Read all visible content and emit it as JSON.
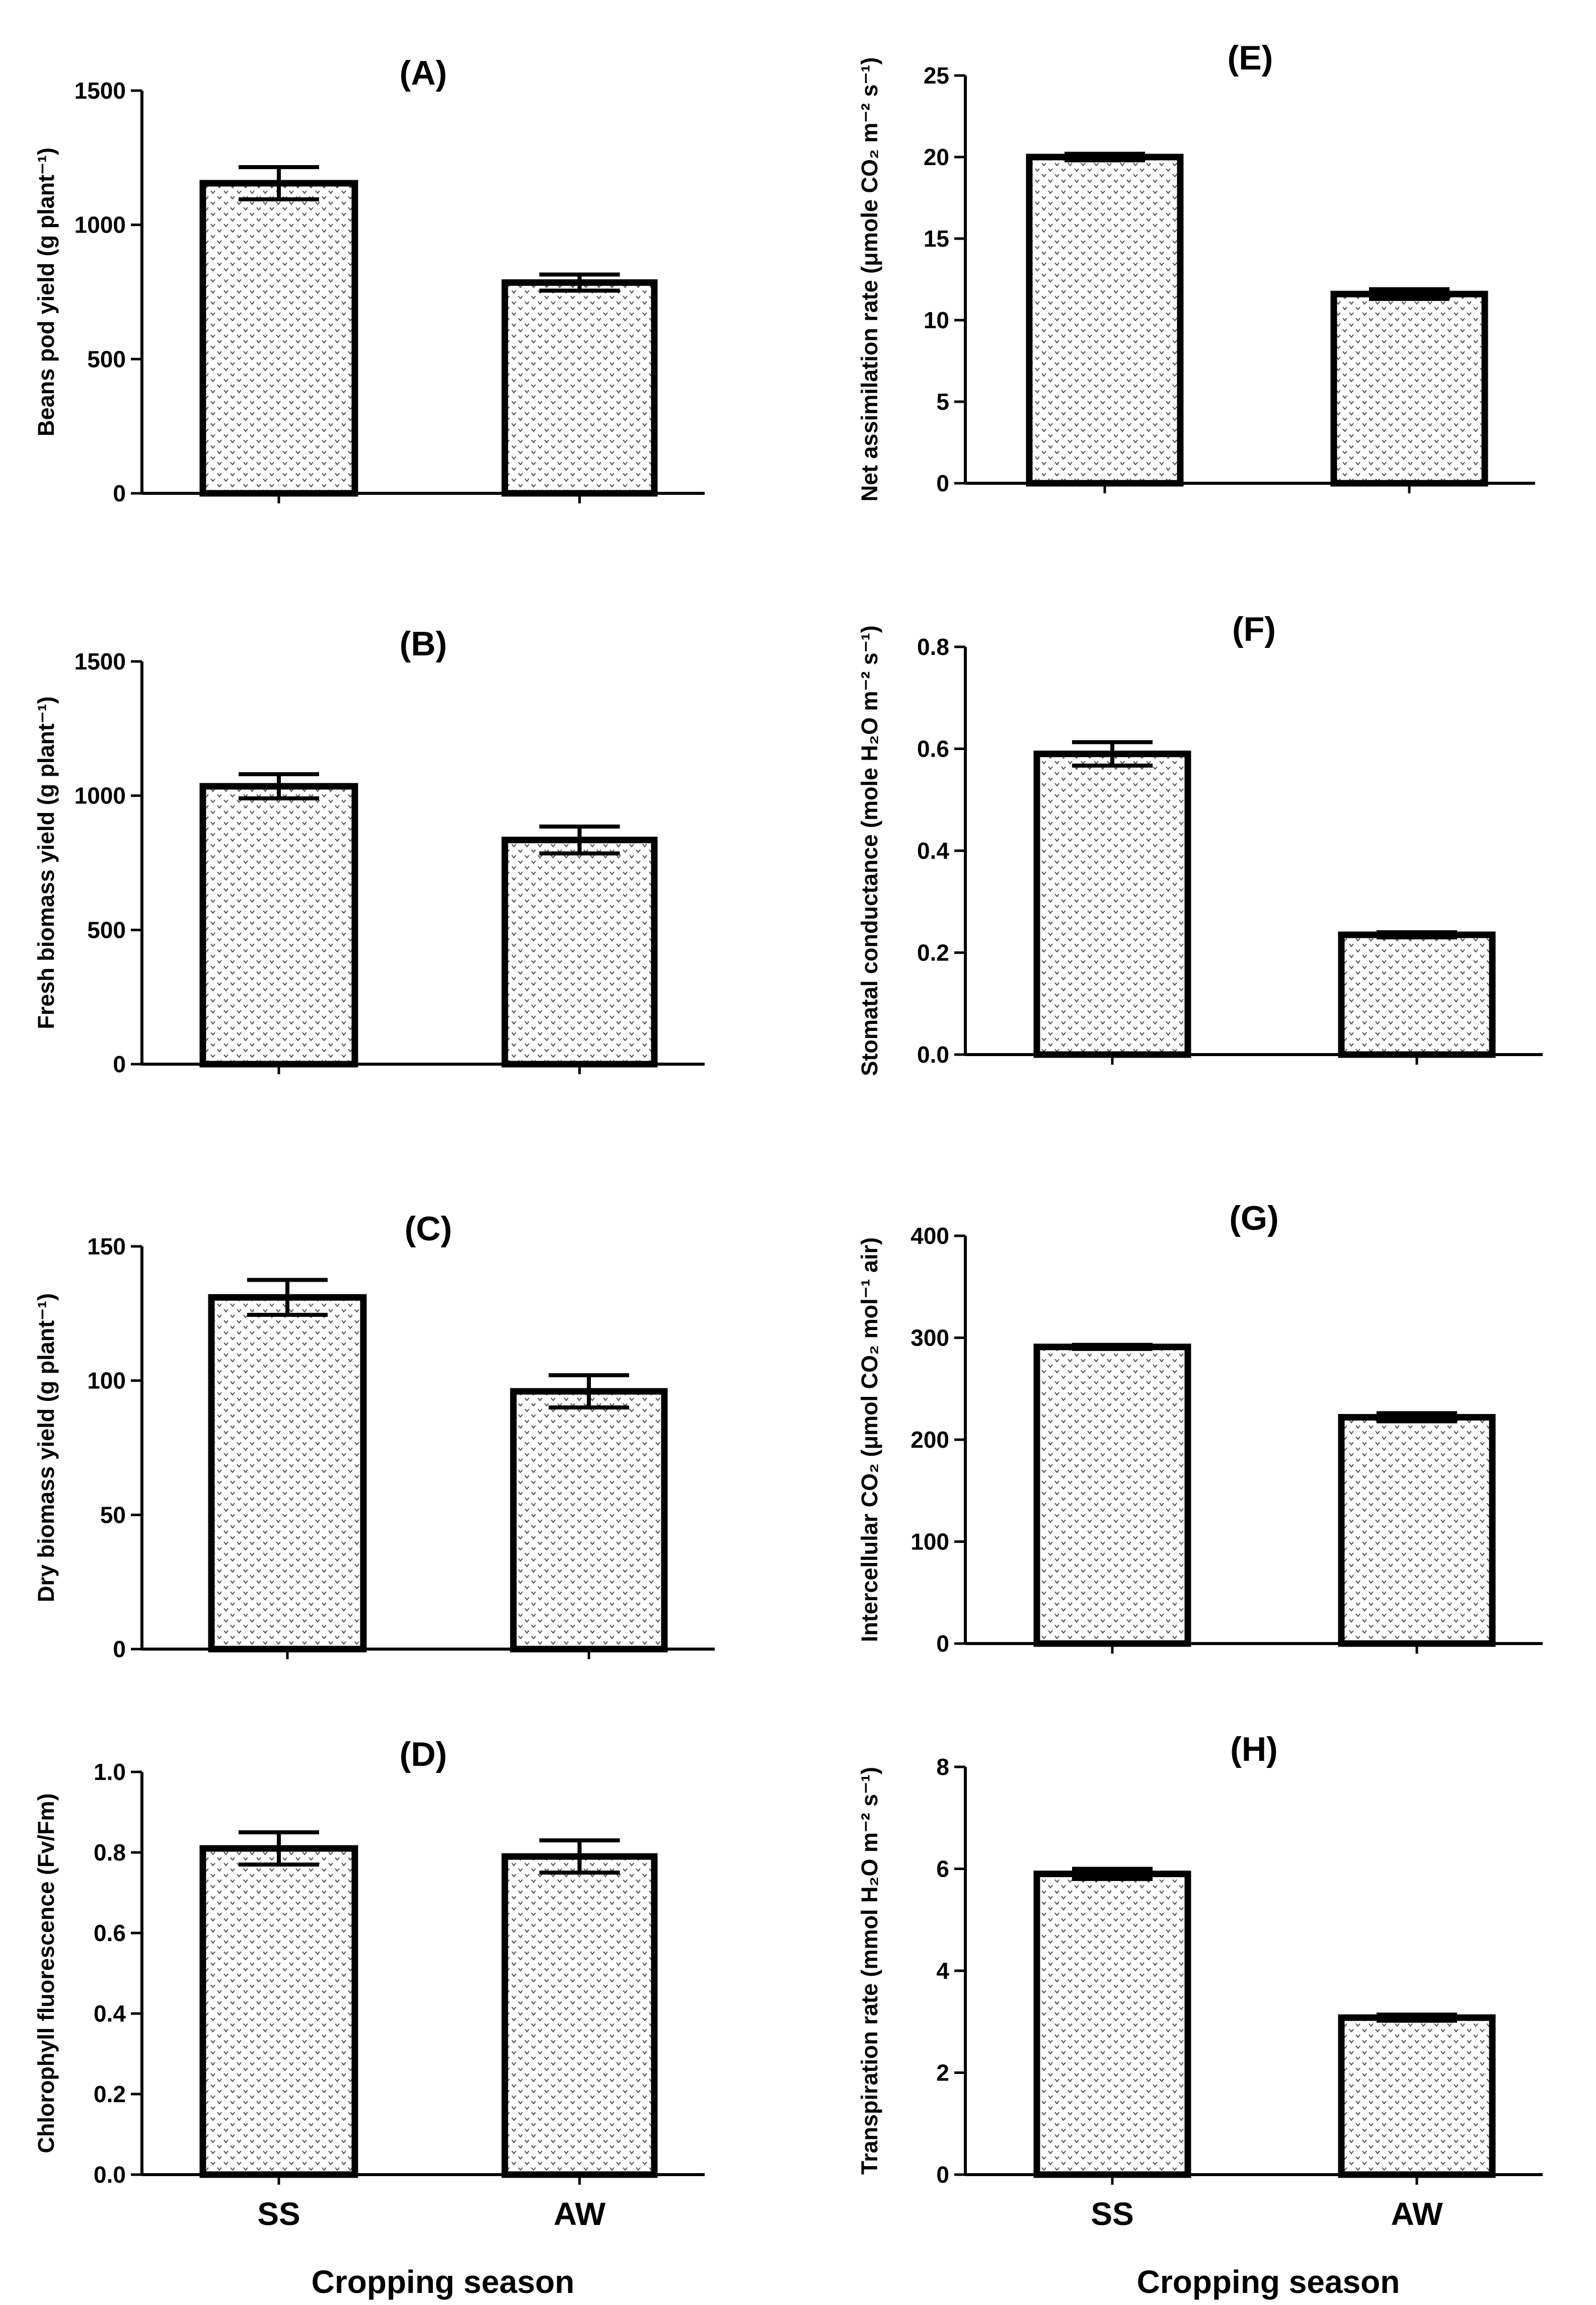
{
  "figure": {
    "xlabel_left": "Cropping season",
    "xlabel_right": "Cropping season"
  },
  "chart_data": [
    {
      "type": "bar",
      "title": "(A)",
      "ylabel": "Beans pod yield (g plant⁻¹)",
      "categories": [
        "SS",
        "AW"
      ],
      "values": [
        1155,
        785
      ],
      "errors": [
        60,
        30
      ],
      "ylim": [
        0,
        1500
      ],
      "ticks": [
        0,
        500,
        1000,
        1500
      ],
      "tick_labels": [
        "0",
        "500",
        "1000",
        "1500"
      ],
      "show_category_labels": false,
      "xlabel": ""
    },
    {
      "type": "bar",
      "title": "(B)",
      "ylabel": "Fresh biomass yield (g plant⁻¹)",
      "categories": [
        "SS",
        "AW"
      ],
      "values": [
        1035,
        835
      ],
      "errors": [
        45,
        50
      ],
      "ylim": [
        0,
        1500
      ],
      "ticks": [
        0,
        500,
        1000,
        1500
      ],
      "tick_labels": [
        "0",
        "500",
        "1000",
        "1500"
      ],
      "show_category_labels": false,
      "xlabel": ""
    },
    {
      "type": "bar",
      "title": "(C)",
      "ylabel": "Dry biomass yield (g plant⁻¹)",
      "categories": [
        "SS",
        "AW"
      ],
      "values": [
        131,
        96
      ],
      "errors": [
        6.5,
        6
      ],
      "ylim": [
        0,
        150
      ],
      "ticks": [
        0,
        50,
        100,
        150
      ],
      "tick_labels": [
        "0",
        "50",
        "100",
        "150"
      ],
      "show_category_labels": false,
      "xlabel": ""
    },
    {
      "type": "bar",
      "title": "(D)",
      "ylabel": "Chlorophyll fluorescence (Fv/Fm)",
      "categories": [
        "SS",
        "AW"
      ],
      "values": [
        0.81,
        0.79
      ],
      "errors": [
        0.04,
        0.04
      ],
      "ylim": [
        0,
        1.0
      ],
      "ticks": [
        0,
        0.2,
        0.4,
        0.6,
        0.8,
        1.0
      ],
      "tick_labels": [
        "0.0",
        "0.2",
        "0.4",
        "0.6",
        "0.8",
        "1.0"
      ],
      "show_category_labels": true,
      "xlabel": "Cropping season"
    },
    {
      "type": "bar",
      "title": "(E)",
      "ylabel": "Net assimilation rate (μmole CO₂ m⁻² s⁻¹)",
      "categories": [
        "SS",
        "AW"
      ],
      "values": [
        20.0,
        11.6
      ],
      "errors": [
        0.2,
        0.3
      ],
      "ylim": [
        0,
        25
      ],
      "ticks": [
        0,
        5,
        10,
        15,
        20,
        25
      ],
      "tick_labels": [
        "0",
        "5",
        "10",
        "15",
        "20",
        "25"
      ],
      "show_category_labels": false,
      "xlabel": ""
    },
    {
      "type": "bar",
      "title": "(F)",
      "ylabel": "Stomatal conductance (mole H₂O m⁻² s⁻¹)",
      "categories": [
        "SS",
        "AW"
      ],
      "values": [
        0.59,
        0.235
      ],
      "errors": [
        0.023,
        0.005
      ],
      "ylim": [
        0,
        0.8
      ],
      "ticks": [
        0,
        0.2,
        0.4,
        0.6,
        0.8
      ],
      "tick_labels": [
        "0.0",
        "0.2",
        "0.4",
        "0.6",
        "0.8"
      ],
      "show_category_labels": false,
      "xlabel": ""
    },
    {
      "type": "bar",
      "title": "(G)",
      "ylabel": "Intercellular CO₂ (μmol CO₂ mol⁻¹ air)",
      "categories": [
        "SS",
        "AW"
      ],
      "values": [
        291,
        222
      ],
      "errors": [
        2,
        4
      ],
      "ylim": [
        0,
        400
      ],
      "ticks": [
        0,
        100,
        200,
        300,
        400
      ],
      "tick_labels": [
        "0",
        "100",
        "200",
        "300",
        "400"
      ],
      "show_category_labels": false,
      "xlabel": ""
    },
    {
      "type": "bar",
      "title": "(H)",
      "ylabel": "Transpiration rate (mmol H₂O m⁻² s⁻¹)",
      "categories": [
        "SS",
        "AW"
      ],
      "values": [
        5.9,
        3.08
      ],
      "errors": [
        0.1,
        0.06
      ],
      "ylim": [
        0,
        8
      ],
      "ticks": [
        0,
        2,
        4,
        6,
        8
      ],
      "tick_labels": [
        "0",
        "2",
        "4",
        "6",
        "8"
      ],
      "show_category_labels": true,
      "xlabel": "Cropping season"
    }
  ]
}
